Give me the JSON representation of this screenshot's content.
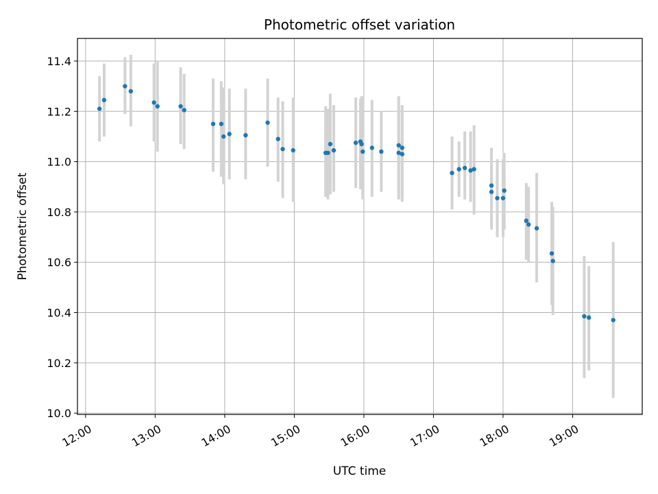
{
  "chart_data": {
    "type": "scatter",
    "title": "Photometric offset variation",
    "xlabel": "UTC time",
    "ylabel": "Photometric offset",
    "grid": true,
    "legend": "none",
    "xlim": [
      "11:53",
      "20:00"
    ],
    "ylim": [
      9.995,
      11.49
    ],
    "x_ticks": [
      "12:00",
      "13:00",
      "14:00",
      "15:00",
      "16:00",
      "17:00",
      "18:00",
      "19:00"
    ],
    "y_ticks": [
      "10.0",
      "10.2",
      "10.4",
      "10.6",
      "10.8",
      "11.0",
      "11.2",
      "11.4"
    ],
    "colors": {
      "point": "#1f77b4",
      "errorbar": "#d3d3d3",
      "grid": "#b0b0b0"
    },
    "series": [
      {
        "x": [
          "12:12",
          "12:16",
          "12:34",
          "12:39",
          "12:59",
          "13:02",
          "13:22",
          "13:25",
          "13:50",
          "13:57",
          "13:59",
          "14:04",
          "14:18",
          "14:37",
          "14:46",
          "14:50",
          "14:59",
          "15:27",
          "15:29",
          "15:31",
          "15:34",
          "15:53",
          "15:57",
          "15:58",
          "15:59",
          "16:07",
          "16:15",
          "16:30",
          "16:30",
          "16:33",
          "16:33",
          "17:16",
          "17:22",
          "17:27",
          "17:32",
          "17:35",
          "17:50",
          "17:50",
          "17:55",
          "18:00",
          "18:01",
          "18:20",
          "18:22",
          "18:29",
          "18:42",
          "18:43",
          "19:10",
          "19:14",
          "19:35"
        ],
        "y": [
          11.21,
          11.245,
          11.3,
          11.28,
          11.235,
          11.22,
          11.22,
          11.205,
          11.15,
          11.15,
          11.1,
          11.11,
          11.105,
          11.155,
          11.09,
          11.05,
          11.045,
          11.035,
          11.035,
          11.07,
          11.045,
          11.075,
          11.08,
          11.07,
          11.04,
          11.055,
          11.04,
          11.065,
          11.035,
          11.055,
          11.03,
          10.955,
          10.97,
          10.975,
          10.965,
          10.97,
          10.905,
          10.88,
          10.855,
          10.855,
          10.885,
          10.765,
          10.75,
          10.735,
          10.635,
          10.605,
          10.385,
          10.38,
          10.37
        ],
        "err_low": [
          11.08,
          11.1,
          11.19,
          11.14,
          11.08,
          11.04,
          11.07,
          11.05,
          10.96,
          10.94,
          10.91,
          10.93,
          10.93,
          10.98,
          10.92,
          10.855,
          10.84,
          10.86,
          10.85,
          10.87,
          10.88,
          10.895,
          10.89,
          10.91,
          10.85,
          10.86,
          10.88,
          10.85,
          10.85,
          10.87,
          10.84,
          10.81,
          10.86,
          10.85,
          10.84,
          10.79,
          10.73,
          10.76,
          10.7,
          10.7,
          10.73,
          10.61,
          10.6,
          10.52,
          10.43,
          10.39,
          10.14,
          10.17,
          10.06
        ],
        "err_high": [
          11.34,
          11.39,
          11.415,
          11.425,
          11.39,
          11.4,
          11.375,
          11.35,
          11.33,
          11.32,
          11.295,
          11.29,
          11.29,
          11.33,
          11.255,
          11.24,
          11.255,
          11.22,
          11.21,
          11.27,
          11.225,
          11.255,
          11.25,
          11.26,
          11.26,
          11.245,
          11.2,
          11.26,
          11.22,
          11.225,
          11.22,
          11.1,
          11.08,
          11.12,
          11.12,
          11.145,
          11.055,
          11.005,
          11.01,
          11.01,
          11.035,
          10.915,
          10.9,
          10.955,
          10.84,
          10.82,
          10.625,
          10.585,
          10.68
        ]
      }
    ]
  }
}
